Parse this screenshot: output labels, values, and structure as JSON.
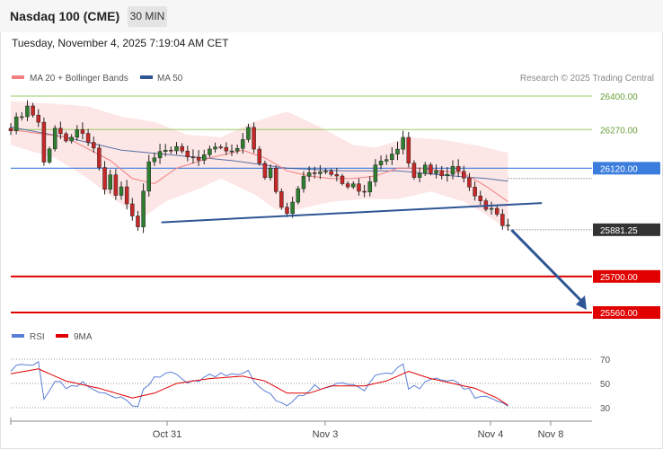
{
  "header": {
    "title": "Nasdaq 100 (CME)",
    "timeframe": "30 MIN",
    "datetime": "Tuesday, November 4, 2025 7:19:04 AM CET"
  },
  "legend": {
    "items": [
      {
        "label": "MA 20 + Bollinger Bands",
        "color": "#f08080"
      },
      {
        "label": "MA 50",
        "color": "#2e5594"
      }
    ],
    "copyright": "Research © 2025 Trading Central"
  },
  "rsi_legend": {
    "items": [
      {
        "label": "RSI",
        "color": "#5b7fd6"
      },
      {
        "label": "9MA",
        "color": "#e00000"
      }
    ]
  },
  "colors": {
    "up_candle": "#2f7d2f",
    "down_candle": "#c62828",
    "resistance_green": "#9ccc65",
    "level_blue": "#3b7ddd",
    "support_red": "#e00000",
    "current_price_bg": "#333333",
    "bollinger_fill": "#fde2e2",
    "trendline": "#2e5594"
  },
  "chart_data": {
    "type": "candlestick",
    "y_range": [
      25480,
      26440
    ],
    "levels": [
      {
        "label": "26400.00",
        "value": 26400,
        "style": "green"
      },
      {
        "label": "26270.00",
        "value": 26270,
        "style": "green"
      },
      {
        "label": "26120.00",
        "value": 26120,
        "style": "blue"
      },
      {
        "label": "25881.25",
        "value": 25881.25,
        "style": "current"
      },
      {
        "label": "25700.00",
        "value": 25700,
        "style": "red"
      },
      {
        "label": "25560.00",
        "value": 25560,
        "style": "red"
      }
    ],
    "x_ticks": [
      {
        "label": "Oct 31",
        "index": 26
      },
      {
        "label": "Nov 3",
        "index": 53
      },
      {
        "label": "Nov 4",
        "index": 80
      },
      {
        "label": "Nov 8",
        "index": 90
      }
    ],
    "bar_count": 96,
    "close_anchors": [
      [
        0,
        26280
      ],
      [
        3,
        26360
      ],
      [
        5,
        26300
      ],
      [
        6,
        26140
      ],
      [
        8,
        26270
      ],
      [
        10,
        26240
      ],
      [
        13,
        26270
      ],
      [
        14,
        26230
      ],
      [
        15,
        26200
      ],
      [
        16,
        26110
      ],
      [
        17,
        26040
      ],
      [
        18,
        26090
      ],
      [
        19,
        26020
      ],
      [
        20,
        26040
      ],
      [
        21,
        25980
      ],
      [
        22,
        25930
      ],
      [
        23,
        25890
      ],
      [
        24,
        26020
      ],
      [
        25,
        26140
      ],
      [
        26,
        26160
      ],
      [
        28,
        26180
      ],
      [
        30,
        26190
      ],
      [
        32,
        26170
      ],
      [
        34,
        26160
      ],
      [
        36,
        26180
      ],
      [
        38,
        26200
      ],
      [
        40,
        26190
      ],
      [
        42,
        26230
      ],
      [
        43,
        26270
      ],
      [
        44,
        26200
      ],
      [
        45,
        26130
      ],
      [
        46,
        26090
      ],
      [
        47,
        26120
      ],
      [
        48,
        26040
      ],
      [
        49,
        25980
      ],
      [
        50,
        25950
      ],
      [
        51,
        26000
      ],
      [
        52,
        26050
      ],
      [
        53,
        26090
      ],
      [
        55,
        26110
      ],
      [
        57,
        26100
      ],
      [
        59,
        26080
      ],
      [
        61,
        26060
      ],
      [
        62,
        26050
      ],
      [
        64,
        26040
      ],
      [
        65,
        26080
      ],
      [
        66,
        26130
      ],
      [
        68,
        26150
      ],
      [
        69,
        26170
      ],
      [
        70,
        26190
      ],
      [
        71,
        26240
      ],
      [
        72,
        26130
      ],
      [
        73,
        26070
      ],
      [
        74,
        26090
      ],
      [
        75,
        26130
      ],
      [
        76,
        26110
      ],
      [
        78,
        26100
      ],
      [
        80,
        26120
      ],
      [
        81,
        26110
      ],
      [
        82,
        26070
      ],
      [
        83,
        26040
      ],
      [
        84,
        26000
      ],
      [
        85,
        25990
      ],
      [
        86,
        25960
      ],
      [
        87,
        25960
      ],
      [
        88,
        25940
      ],
      [
        89,
        25910
      ],
      [
        90,
        25890
      ]
    ],
    "ma20_anchors": [
      [
        0,
        26270
      ],
      [
        10,
        26240
      ],
      [
        18,
        26150
      ],
      [
        22,
        26080
      ],
      [
        26,
        26060
      ],
      [
        30,
        26120
      ],
      [
        36,
        26160
      ],
      [
        42,
        26190
      ],
      [
        46,
        26160
      ],
      [
        50,
        26110
      ],
      [
        54,
        26090
      ],
      [
        58,
        26080
      ],
      [
        62,
        26080
      ],
      [
        66,
        26090
      ],
      [
        70,
        26120
      ],
      [
        74,
        26120
      ],
      [
        78,
        26110
      ],
      [
        82,
        26100
      ],
      [
        86,
        26050
      ],
      [
        90,
        25990
      ]
    ],
    "ma50_anchors": [
      [
        0,
        26280
      ],
      [
        10,
        26240
      ],
      [
        20,
        26190
      ],
      [
        30,
        26170
      ],
      [
        40,
        26150
      ],
      [
        50,
        26120
      ],
      [
        60,
        26110
      ],
      [
        70,
        26110
      ],
      [
        80,
        26090
      ],
      [
        86,
        26080
      ],
      [
        90,
        26070
      ]
    ],
    "bb_upper_anchors": [
      [
        0,
        26380
      ],
      [
        8,
        26370
      ],
      [
        14,
        26360
      ],
      [
        20,
        26320
      ],
      [
        26,
        26300
      ],
      [
        32,
        26250
      ],
      [
        38,
        26240
      ],
      [
        44,
        26300
      ],
      [
        50,
        26340
      ],
      [
        56,
        26280
      ],
      [
        62,
        26210
      ],
      [
        66,
        26200
      ],
      [
        72,
        26240
      ],
      [
        78,
        26230
      ],
      [
        84,
        26210
      ],
      [
        90,
        26180
      ]
    ],
    "bb_lower_anchors": [
      [
        0,
        26210
      ],
      [
        8,
        26160
      ],
      [
        14,
        26080
      ],
      [
        20,
        25980
      ],
      [
        24,
        25930
      ],
      [
        28,
        25990
      ],
      [
        34,
        26040
      ],
      [
        38,
        26080
      ],
      [
        44,
        26020
      ],
      [
        48,
        25960
      ],
      [
        52,
        25960
      ],
      [
        58,
        25990
      ],
      [
        64,
        26000
      ],
      [
        70,
        26000
      ],
      [
        76,
        26030
      ],
      [
        82,
        25990
      ],
      [
        86,
        25940
      ],
      [
        90,
        25880
      ]
    ],
    "trendline": {
      "from": [
        24,
        25910
      ],
      "to": [
        88,
        25985
      ]
    },
    "projection_arrow": {
      "from": [
        90,
        25880
      ],
      "to": [
        100,
        25560
      ]
    },
    "rsi": {
      "ticks": [
        70,
        50,
        30
      ],
      "y_range": [
        24,
        78
      ],
      "rsi_anchors": [
        [
          0,
          62
        ],
        [
          3,
          68
        ],
        [
          5,
          66
        ],
        [
          6,
          40
        ],
        [
          8,
          52
        ],
        [
          10,
          46
        ],
        [
          13,
          50
        ],
        [
          15,
          44
        ],
        [
          17,
          40
        ],
        [
          19,
          38
        ],
        [
          21,
          34
        ],
        [
          23,
          28
        ],
        [
          24,
          44
        ],
        [
          26,
          56
        ],
        [
          28,
          58
        ],
        [
          32,
          52
        ],
        [
          36,
          56
        ],
        [
          40,
          58
        ],
        [
          43,
          62
        ],
        [
          44,
          54
        ],
        [
          46,
          44
        ],
        [
          48,
          38
        ],
        [
          50,
          30
        ],
        [
          52,
          38
        ],
        [
          54,
          46
        ],
        [
          58,
          50
        ],
        [
          62,
          48
        ],
        [
          64,
          44
        ],
        [
          66,
          54
        ],
        [
          68,
          58
        ],
        [
          70,
          62
        ],
        [
          71,
          68
        ],
        [
          72,
          48
        ],
        [
          74,
          46
        ],
        [
          76,
          52
        ],
        [
          80,
          52
        ],
        [
          82,
          48
        ],
        [
          84,
          40
        ],
        [
          86,
          38
        ],
        [
          88,
          34
        ],
        [
          90,
          29
        ]
      ],
      "ma9_anchors": [
        [
          0,
          58
        ],
        [
          5,
          62
        ],
        [
          10,
          52
        ],
        [
          16,
          46
        ],
        [
          22,
          38
        ],
        [
          26,
          42
        ],
        [
          30,
          50
        ],
        [
          36,
          54
        ],
        [
          42,
          56
        ],
        [
          46,
          52
        ],
        [
          50,
          42
        ],
        [
          54,
          42
        ],
        [
          58,
          48
        ],
        [
          64,
          48
        ],
        [
          68,
          52
        ],
        [
          72,
          60
        ],
        [
          76,
          54
        ],
        [
          80,
          50
        ],
        [
          84,
          46
        ],
        [
          88,
          38
        ],
        [
          90,
          32
        ]
      ]
    }
  }
}
